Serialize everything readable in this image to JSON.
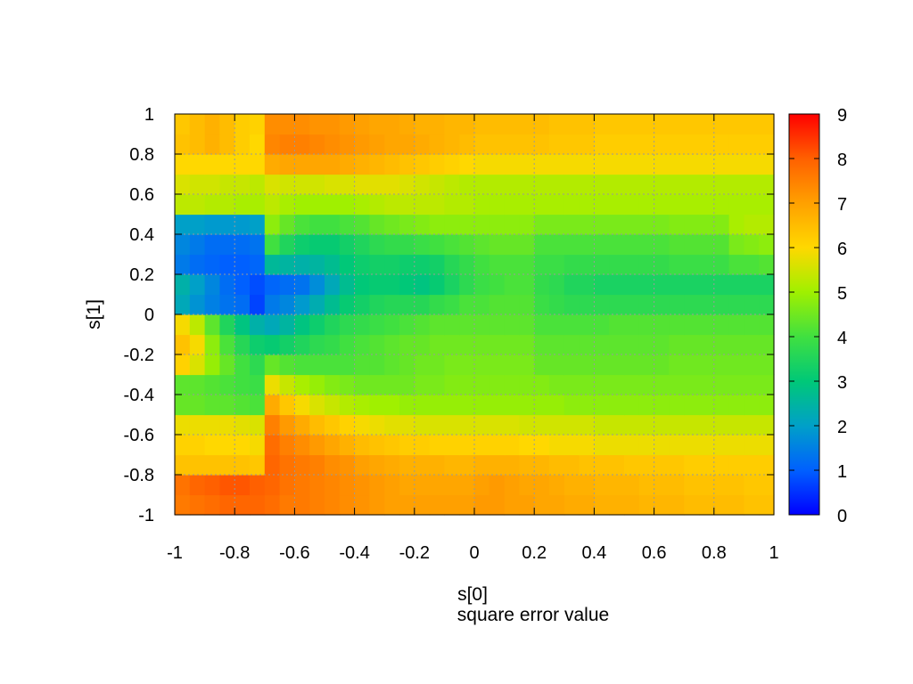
{
  "chart_data": {
    "type": "heatmap",
    "xlabel": "s[0]",
    "ylabel": "s[1]",
    "caption": "square error value",
    "xlim": [
      -1,
      1
    ],
    "ylim": [
      -1,
      1
    ],
    "x_ticks": [
      "-1",
      "-0.8",
      "-0.6",
      "-0.4",
      "-0.2",
      "0",
      "0.2",
      "0.4",
      "0.6",
      "0.8",
      "1"
    ],
    "y_ticks": [
      "-1",
      "-0.8",
      "-0.6",
      "-0.4",
      "-0.2",
      "0",
      "0.2",
      "0.4",
      "0.6",
      "0.8",
      "1"
    ],
    "colorbar": {
      "range": [
        0,
        9
      ],
      "ticks": [
        "0",
        "1",
        "2",
        "3",
        "4",
        "5",
        "6",
        "7",
        "8",
        "9"
      ],
      "colormap": [
        "#0000ff",
        "#0060ff",
        "#00a0c8",
        "#00c878",
        "#40e040",
        "#a0f000",
        "#ffd800",
        "#ffa000",
        "#ff6000",
        "#ff0000"
      ]
    },
    "grid": true,
    "grid_step": 0.05,
    "x_start": -1,
    "y_start": -1,
    "values": [
      [
        7.6,
        7.7,
        7.8,
        7.9,
        7.9,
        7.9,
        7.8,
        7.6,
        7.6,
        7.5,
        7.4,
        7.3,
        7.2,
        7.1,
        7.0,
        7.0,
        7.0,
        7.0,
        7.0,
        7.0,
        7.1,
        7.1,
        7.0,
        7.0,
        6.9,
        6.9,
        6.8,
        6.8,
        6.7,
        6.7,
        6.7,
        6.6,
        6.6,
        6.6,
        6.5,
        6.5,
        6.5,
        6.5,
        6.4,
        6.4
      ],
      [
        7.7,
        7.9,
        8.0,
        8.1,
        8.1,
        8.0,
        7.9,
        7.7,
        7.6,
        7.5,
        7.4,
        7.3,
        7.2,
        7.1,
        7.0,
        6.9,
        6.9,
        6.9,
        6.9,
        6.9,
        7.0,
        7.1,
        7.0,
        6.9,
        6.9,
        6.8,
        6.7,
        6.7,
        6.6,
        6.6,
        6.6,
        6.5,
        6.5,
        6.5,
        6.4,
        6.4,
        6.4,
        6.4,
        6.3,
        6.3
      ],
      [
        6.4,
        6.4,
        6.4,
        6.4,
        6.4,
        6.3,
        7.9,
        7.7,
        7.6,
        7.5,
        7.3,
        7.2,
        7.0,
        6.9,
        6.8,
        6.7,
        6.7,
        6.7,
        6.6,
        6.6,
        6.7,
        6.7,
        6.7,
        6.6,
        6.6,
        6.5,
        6.5,
        6.4,
        6.4,
        6.4,
        6.3,
        6.3,
        6.3,
        6.3,
        6.2,
        6.2,
        6.2,
        6.2,
        6.2,
        6.2
      ],
      [
        6.1,
        6.1,
        6.0,
        6.0,
        6.0,
        5.9,
        7.8,
        7.5,
        7.3,
        7.1,
        6.9,
        6.7,
        6.5,
        6.4,
        6.3,
        6.2,
        6.2,
        6.1,
        6.1,
        6.1,
        6.1,
        6.1,
        6.1,
        6.0,
        6.0,
        5.9,
        5.9,
        5.9,
        5.8,
        5.8,
        5.8,
        5.8,
        5.8,
        5.8,
        5.8,
        5.8,
        5.8,
        5.8,
        5.8,
        5.8
      ],
      [
        5.8,
        5.8,
        5.8,
        5.8,
        5.7,
        5.6,
        7.5,
        7.1,
        6.8,
        6.5,
        6.3,
        6.1,
        5.9,
        5.8,
        5.7,
        5.7,
        5.6,
        5.6,
        5.6,
        5.6,
        5.6,
        5.6,
        5.6,
        5.5,
        5.5,
        5.5,
        5.5,
        5.5,
        5.4,
        5.4,
        5.4,
        5.4,
        5.4,
        5.4,
        5.4,
        5.4,
        5.4,
        5.4,
        5.4,
        5.4
      ],
      [
        4.4,
        4.4,
        4.3,
        4.3,
        4.2,
        4.1,
        6.8,
        6.3,
        5.9,
        5.6,
        5.4,
        5.2,
        5.1,
        5.0,
        5.0,
        4.9,
        4.9,
        4.9,
        4.9,
        4.9,
        4.9,
        4.9,
        4.9,
        4.9,
        4.9,
        4.9,
        4.8,
        4.8,
        4.8,
        4.8,
        4.8,
        4.8,
        4.8,
        4.8,
        4.8,
        4.8,
        4.8,
        4.8,
        4.8,
        4.8
      ],
      [
        4.3,
        4.3,
        4.2,
        4.1,
        4.0,
        3.9,
        5.8,
        5.4,
        5.1,
        4.9,
        4.7,
        4.6,
        4.5,
        4.5,
        4.5,
        4.5,
        4.6,
        4.6,
        4.7,
        4.7,
        4.7,
        4.7,
        4.7,
        4.7,
        4.7,
        4.6,
        4.6,
        4.6,
        4.6,
        4.6,
        4.6,
        4.6,
        4.6,
        4.6,
        4.6,
        4.6,
        4.6,
        4.6,
        4.6,
        4.6
      ],
      [
        6.1,
        5.6,
        4.9,
        4.4,
        4.0,
        3.7,
        4.4,
        4.2,
        4.1,
        4.1,
        4.1,
        4.1,
        4.2,
        4.2,
        4.3,
        4.4,
        4.5,
        4.5,
        4.6,
        4.6,
        4.6,
        4.6,
        4.6,
        4.6,
        4.4,
        4.4,
        4.4,
        4.4,
        4.4,
        4.4,
        4.4,
        4.4,
        4.4,
        4.5,
        4.5,
        4.5,
        4.5,
        4.5,
        4.5,
        4.5
      ],
      [
        6.4,
        5.9,
        4.8,
        4.1,
        3.6,
        3.2,
        3.1,
        3.3,
        3.5,
        3.7,
        3.8,
        4.0,
        4.1,
        4.2,
        4.3,
        4.4,
        4.4,
        4.5,
        4.5,
        4.5,
        4.5,
        4.5,
        4.5,
        4.5,
        4.3,
        4.3,
        4.3,
        4.3,
        4.3,
        4.3,
        4.3,
        4.3,
        4.3,
        4.4,
        4.4,
        4.4,
        4.4,
        4.4,
        4.4,
        4.4
      ],
      [
        5.9,
        5.3,
        4.3,
        3.5,
        2.9,
        2.4,
        2.2,
        2.5,
        2.9,
        3.2,
        3.5,
        3.7,
        3.8,
        3.9,
        4.0,
        4.1,
        4.2,
        4.3,
        4.3,
        4.3,
        4.3,
        4.3,
        4.3,
        4.3,
        4.1,
        4.1,
        4.1,
        4.1,
        4.1,
        4.2,
        4.2,
        4.2,
        4.2,
        4.2,
        4.2,
        4.2,
        4.2,
        4.2,
        4.2,
        4.2
      ],
      [
        2.2,
        1.8,
        1.5,
        1.3,
        1.2,
        0.7,
        1.4,
        1.6,
        1.9,
        2.3,
        2.7,
        3.1,
        3.3,
        3.5,
        3.6,
        3.6,
        3.6,
        3.8,
        3.9,
        4.1,
        4.1,
        4.2,
        4.2,
        4.2,
        3.9,
        3.8,
        3.7,
        3.7,
        3.7,
        3.7,
        3.7,
        3.7,
        3.7,
        3.7,
        3.7,
        3.7,
        3.7,
        3.7,
        3.7,
        3.7
      ],
      [
        2.4,
        2.0,
        1.6,
        1.2,
        1.0,
        0.8,
        1.1,
        1.2,
        1.3,
        1.7,
        2.2,
        2.7,
        3.0,
        3.1,
        3.1,
        3.0,
        2.9,
        3.1,
        3.4,
        3.7,
        3.9,
        4.0,
        4.1,
        4.1,
        3.8,
        3.7,
        3.5,
        3.5,
        3.4,
        3.4,
        3.4,
        3.4,
        3.4,
        3.4,
        3.4,
        3.4,
        3.4,
        3.4,
        3.4,
        3.4
      ],
      [
        1.4,
        1.2,
        1.1,
        1.0,
        1.0,
        1.1,
        2.6,
        2.5,
        2.4,
        2.5,
        2.7,
        3.0,
        3.2,
        3.3,
        3.3,
        3.2,
        3.2,
        3.3,
        3.6,
        3.8,
        4.0,
        4.1,
        4.1,
        4.1,
        3.9,
        3.9,
        3.8,
        3.8,
        3.8,
        3.8,
        3.8,
        3.8,
        3.8,
        3.9,
        3.9,
        3.9,
        3.9,
        4.1,
        4.1,
        4.2
      ],
      [
        1.6,
        1.4,
        1.2,
        1.2,
        1.2,
        1.3,
        4.0,
        3.5,
        3.2,
        3.1,
        3.1,
        3.3,
        3.5,
        3.7,
        3.8,
        3.8,
        3.9,
        4.0,
        4.1,
        4.2,
        4.3,
        4.4,
        4.4,
        4.4,
        4.1,
        4.1,
        4.1,
        4.1,
        4.1,
        4.1,
        4.1,
        4.1,
        4.1,
        4.2,
        4.2,
        4.2,
        4.2,
        4.6,
        4.7,
        4.8
      ],
      [
        2.0,
        2.0,
        1.9,
        1.9,
        1.9,
        2.0,
        4.8,
        4.4,
        4.1,
        4.0,
        4.0,
        4.1,
        4.2,
        4.4,
        4.5,
        4.6,
        4.7,
        4.8,
        4.8,
        4.8,
        4.8,
        4.8,
        4.8,
        4.8,
        4.6,
        4.6,
        4.6,
        4.6,
        4.6,
        4.6,
        4.6,
        4.6,
        4.6,
        4.7,
        4.7,
        4.7,
        4.7,
        5.1,
        5.2,
        5.2
      ],
      [
        5.3,
        5.3,
        5.2,
        5.2,
        5.1,
        5.1,
        5.3,
        5.1,
        5.0,
        5.0,
        5.0,
        5.0,
        5.1,
        5.2,
        5.3,
        5.3,
        5.3,
        5.3,
        5.2,
        5.2,
        5.1,
        5.1,
        5.1,
        5.1,
        5.1,
        5.1,
        5.1,
        5.1,
        5.1,
        5.1,
        5.1,
        5.1,
        5.1,
        5.1,
        5.1,
        5.1,
        5.1,
        5.1,
        5.1,
        5.1
      ],
      [
        5.6,
        5.5,
        5.5,
        5.4,
        5.4,
        5.3,
        5.6,
        5.5,
        5.5,
        5.5,
        5.6,
        5.6,
        5.7,
        5.7,
        5.7,
        5.6,
        5.5,
        5.4,
        5.3,
        5.2,
        5.2,
        5.2,
        5.2,
        5.2,
        5.2,
        5.2,
        5.2,
        5.2,
        5.2,
        5.2,
        5.2,
        5.2,
        5.2,
        5.2,
        5.2,
        5.2,
        5.2,
        5.2,
        5.2,
        5.2
      ],
      [
        6.0,
        6.0,
        6.0,
        6.0,
        6.0,
        6.0,
        6.8,
        6.9,
        6.9,
        6.9,
        6.9,
        6.8,
        6.7,
        6.6,
        6.5,
        6.4,
        6.3,
        6.2,
        6.1,
        6.0,
        5.9,
        5.9,
        5.9,
        5.9,
        5.9,
        5.9,
        5.9,
        5.9,
        5.9,
        5.9,
        5.9,
        5.9,
        5.9,
        5.9,
        5.9,
        5.9,
        5.9,
        5.9,
        5.9,
        5.9
      ],
      [
        6.4,
        6.5,
        6.7,
        6.5,
        6.2,
        6.0,
        7.4,
        7.5,
        7.5,
        7.4,
        7.3,
        7.2,
        7.1,
        7.0,
        6.9,
        6.9,
        6.8,
        6.7,
        6.6,
        6.5,
        6.4,
        6.4,
        6.4,
        6.4,
        6.4,
        6.3,
        6.3,
        6.3,
        6.2,
        6.2,
        6.2,
        6.2,
        6.2,
        6.2,
        6.2,
        6.2,
        6.2,
        6.2,
        6.2,
        6.2
      ],
      [
        6.3,
        6.5,
        6.7,
        6.5,
        6.2,
        6.1,
        7.3,
        7.3,
        7.3,
        7.2,
        7.2,
        7.1,
        7.0,
        6.9,
        6.9,
        6.8,
        6.7,
        6.7,
        6.6,
        6.6,
        6.5,
        6.5,
        6.5,
        6.5,
        6.5,
        6.4,
        6.4,
        6.4,
        6.3,
        6.3,
        6.3,
        6.3,
        6.3,
        6.3,
        6.3,
        6.3,
        6.3,
        6.3,
        6.3,
        6.3
      ]
    ]
  }
}
